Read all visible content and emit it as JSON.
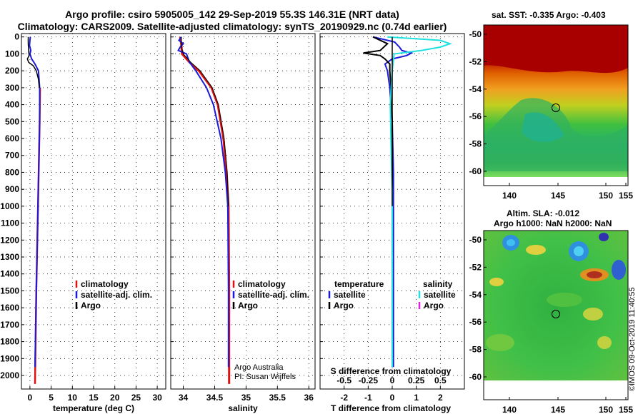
{
  "header": {
    "title1": "Argo profile: csiro 5905005_142 29-Sep-2019 55.3S 146.31E (NRT data)",
    "title2": "Climatology: CARS2009. Satellite-adjusted climatology: synTS_20190929.nc (0.74d earlier)"
  },
  "maps": {
    "sst_title": "sat. SST: -0.335 Argo: -0.403",
    "sla_title1": "Altim. SLA: -0.012",
    "sla_title2": "Argo h1000: NaN h2000: NaN",
    "lon_ticks": [
      "140",
      "145",
      "150",
      "155"
    ],
    "lat_ticks": [
      "-50",
      "-52",
      "-54",
      "-56",
      "-58",
      "-60"
    ]
  },
  "watermark": "©IMOS 09-Oct-2019 11:40:55",
  "credit": {
    "line1": "Argo Australia",
    "line2": "PI: Susan Wijffels"
  },
  "colors": {
    "climatology": "#e01010",
    "satellite": "#1a1ad8",
    "argo": "#000000",
    "sal_satellite": "#20e0e0",
    "sal_argo": "#e020e0"
  },
  "chart_data": [
    {
      "type": "line",
      "xlabel": "temperature (deg C)",
      "ylabel": "",
      "xlim": [
        -2,
        32
      ],
      "ylim": [
        2080,
        -20
      ],
      "x_ticks": [
        "0",
        "5",
        "10",
        "15",
        "20",
        "25",
        "30"
      ],
      "depth_ticks": [
        "0",
        "100",
        "200",
        "300",
        "400",
        "500",
        "600",
        "700",
        "800",
        "900",
        "1000",
        "1100",
        "1200",
        "1300",
        "1400",
        "1500",
        "1600",
        "1700",
        "1800",
        "1900",
        "2000"
      ],
      "legend": [
        "climatology",
        "satellite-adj. clim.",
        "Argo"
      ],
      "series": [
        {
          "name": "climatology",
          "depth": [
            300,
            500,
            1000,
            1500,
            2050
          ],
          "values": [
            2.4,
            2.3,
            1.9,
            1.5,
            1.2
          ]
        },
        {
          "name": "satellite-adj. clim.",
          "depth": [
            0,
            20,
            50,
            80,
            100,
            130,
            160,
            200,
            300,
            500,
            1000,
            1500,
            1950
          ],
          "values": [
            0.1,
            0.0,
            -0.1,
            0.2,
            0.0,
            0.4,
            1.2,
            2.0,
            2.3,
            2.3,
            1.9,
            1.5,
            1.2
          ]
        },
        {
          "name": "Argo",
          "depth": [
            0,
            40,
            80,
            110,
            130,
            150,
            170,
            200,
            250,
            300
          ],
          "values": [
            -0.4,
            -0.4,
            -0.3,
            -0.2,
            -0.6,
            -0.3,
            0.8,
            1.5,
            2.0,
            2.2
          ]
        }
      ]
    },
    {
      "type": "line",
      "xlabel": "salinity",
      "ylabel": "",
      "xlim": [
        33.8,
        36.1
      ],
      "ylim": [
        2080,
        -20
      ],
      "x_ticks": [
        "34",
        "34.5",
        "35",
        "35.5",
        "36"
      ],
      "legend": [
        "climatology",
        "satellite-adj. clim.",
        "Argo"
      ],
      "series": [
        {
          "name": "climatology",
          "depth": [
            0,
            50,
            100,
            150,
            200,
            300,
            400,
            600,
            800,
            1000,
            1500,
            2050
          ],
          "values": [
            33.95,
            33.97,
            33.98,
            34.1,
            34.25,
            34.45,
            34.55,
            34.64,
            34.69,
            34.72,
            34.73,
            34.73
          ]
        },
        {
          "name": "satellite-adj. clim.",
          "depth": [
            0,
            20,
            40,
            60,
            80,
            100,
            150,
            200,
            300,
            400,
            600,
            800,
            1000,
            1500,
            1950
          ],
          "values": [
            33.97,
            33.93,
            34.0,
            33.95,
            33.92,
            34.05,
            34.1,
            34.2,
            34.37,
            34.48,
            34.6,
            34.67,
            34.71,
            34.72,
            34.72
          ]
        },
        {
          "name": "Argo",
          "depth": [
            0,
            60,
            100,
            150,
            200,
            300,
            400,
            600,
            800,
            1000
          ],
          "values": [
            33.97,
            33.97,
            34.0,
            34.12,
            34.27,
            34.46,
            34.56,
            34.65,
            34.7,
            34.72
          ]
        }
      ]
    },
    {
      "type": "line",
      "xlabel": "T difference from climatology",
      "x2label": "S difference from climatology",
      "ylabel": "",
      "xlim": [
        -3,
        3
      ],
      "ylim": [
        2080,
        -20
      ],
      "x_ticks": [
        "-2",
        "-1",
        "0",
        "1",
        "2"
      ],
      "x2_ticks": [
        "-0.5",
        "-0.25",
        "0",
        "0.25",
        "0.5"
      ],
      "legend_temperature_title": "temperature",
      "legend_salinity_title": "salinity",
      "legend": [
        "satellite",
        "Argo",
        "satellite",
        "Argo"
      ],
      "series": [
        {
          "name": "temperature satellite",
          "depth": [
            0,
            30,
            60,
            80,
            95,
            110,
            130,
            160,
            200,
            300,
            500,
            800,
            1200,
            1950
          ],
          "values": [
            -0.8,
            0.1,
            0.3,
            0.4,
            0.8,
            0.6,
            0.0,
            -0.3,
            -0.2,
            -0.1,
            0.0,
            0.05,
            0.05,
            0.05
          ]
        },
        {
          "name": "temperature Argo",
          "depth": [
            0,
            40,
            80,
            95,
            110,
            130,
            160,
            200,
            300,
            500,
            800,
            1000
          ],
          "values": [
            -0.8,
            -0.2,
            -0.5,
            -1.2,
            -0.5,
            -0.3,
            -0.1,
            -0.1,
            -0.05,
            0.0,
            0.0,
            0.0
          ]
        },
        {
          "name": "salinity satellite",
          "depth": [
            0,
            20,
            40,
            60,
            80,
            100,
            150,
            200,
            400,
            700,
            900,
            1200,
            1950
          ],
          "values": [
            -0.05,
            0.5,
            0.6,
            0.5,
            0.3,
            0.02,
            0.01,
            0.0,
            -0.02,
            -0.01,
            0.0,
            0.0,
            0.0
          ]
        },
        {
          "name": "salinity Argo",
          "depth": [
            0,
            1000
          ],
          "values": [
            0.0,
            0.0
          ]
        }
      ]
    }
  ]
}
